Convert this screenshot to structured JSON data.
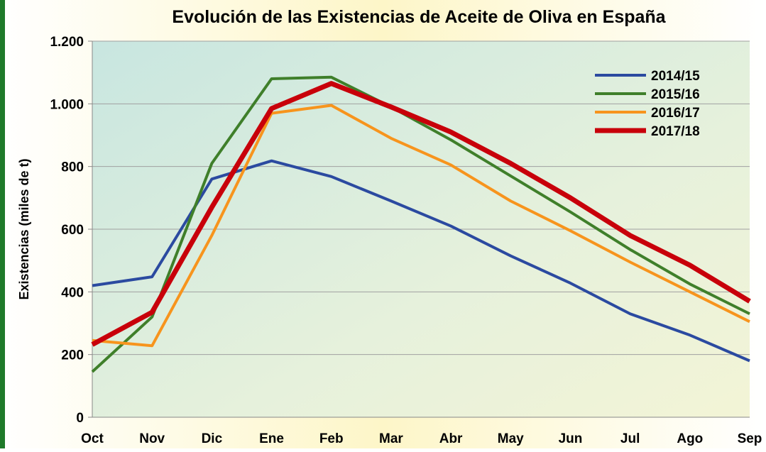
{
  "chart_data": {
    "type": "line",
    "title": "Evolución de las Existencias de Aceite de Oliva en España",
    "y_label": "Existencias (miles de t)",
    "categories": [
      "Oct",
      "Nov",
      "Dic",
      "Ene",
      "Feb",
      "Mar",
      "Abr",
      "May",
      "Jun",
      "Jul",
      "Ago",
      "Sep"
    ],
    "series": [
      {
        "name": "2014/15",
        "color": "#2b4aa0",
        "width": 4,
        "values": [
          420,
          448,
          760,
          818,
          768,
          690,
          610,
          515,
          428,
          330,
          262,
          180
        ]
      },
      {
        "name": "2015/16",
        "color": "#3f7f2a",
        "width": 4,
        "values": [
          145,
          320,
          810,
          1080,
          1085,
          990,
          885,
          770,
          655,
          535,
          425,
          330
        ]
      },
      {
        "name": "2016/17",
        "color": "#f7941d",
        "width": 4,
        "values": [
          245,
          228,
          580,
          970,
          995,
          890,
          805,
          690,
          595,
          495,
          400,
          305
        ]
      },
      {
        "name": "2017/18",
        "color": "#c8000a",
        "width": 7,
        "values": [
          232,
          335,
          670,
          985,
          1065,
          990,
          910,
          810,
          700,
          580,
          485,
          370
        ]
      }
    ],
    "ylim": [
      0,
      1200
    ],
    "yticks": [
      0,
      200,
      400,
      600,
      800,
      {
        "value": 1000,
        "label": "1.000"
      },
      {
        "value": 1200,
        "label": "1.200"
      }
    ],
    "grid": true,
    "legend": "top-right"
  }
}
